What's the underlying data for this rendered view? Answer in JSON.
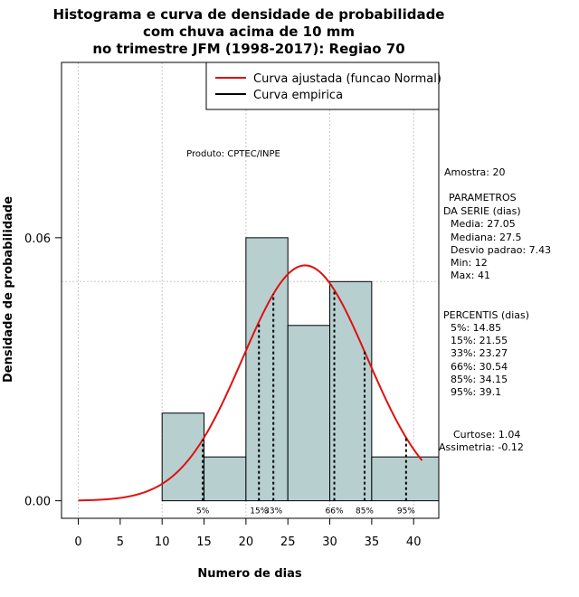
{
  "chart_data": {
    "type": "bar",
    "title": [
      "Histograma e curva de densidade de probabilidade",
      "com chuva acima de 10 mm",
      "no trimestre JFM (1998-2017): Regiao 70"
    ],
    "xlabel": "Numero de dias",
    "ylabel": "Densidade de probabilidade",
    "xlim": [
      -2,
      43
    ],
    "ylim": [
      -0.004,
      0.1
    ],
    "x_ticks": [
      0,
      5,
      10,
      15,
      20,
      25,
      30,
      35,
      40
    ],
    "x_tick_labels": [
      "0",
      "5",
      "10",
      "15",
      "20",
      "25",
      "30",
      "35",
      "40"
    ],
    "y_ticks": [
      0.0,
      0.06
    ],
    "y_tick_labels": [
      "0.00",
      "0.06"
    ],
    "grid_x": [
      0,
      10,
      20,
      30,
      40
    ],
    "grid_y": [
      0.05,
      0.1
    ],
    "histogram": {
      "bins": [
        {
          "x0": 10,
          "x1": 15,
          "density": 0.02
        },
        {
          "x0": 15,
          "x1": 20,
          "density": 0.01
        },
        {
          "x0": 20,
          "x1": 25,
          "density": 0.06
        },
        {
          "x0": 25,
          "x1": 30,
          "density": 0.04
        },
        {
          "x0": 30,
          "x1": 35,
          "density": 0.05
        },
        {
          "x0": 35,
          "x1": 43,
          "density": 0.01
        }
      ],
      "color": "#b7cfcf"
    },
    "normal_curve": {
      "mean": 27.05,
      "sd": 7.43,
      "x_from": 0,
      "x_to": 41,
      "color": "#e01010"
    },
    "legend": {
      "position": "top-right",
      "entries": [
        {
          "label": "Curva ajustada (funcao Normal)",
          "color": "#e01010"
        },
        {
          "label": "Curva empirica",
          "color": "#000000"
        }
      ]
    },
    "annotation": "Produto: CPTEC/INPE",
    "percentiles": [
      {
        "label": "5%",
        "x": 14.85
      },
      {
        "label": "15%",
        "x": 21.55
      },
      {
        "label": "33%",
        "x": 23.27
      },
      {
        "label": "66%",
        "x": 30.54
      },
      {
        "label": "85%",
        "x": 34.15
      },
      {
        "label": "95%",
        "x": 39.1
      }
    ],
    "side_panel": {
      "sample": "Amostra: 20",
      "params_title_1": "PARAMETROS",
      "params_title_2": "DA SERIE (dias)",
      "params": [
        "Media: 27.05",
        "Mediana: 27.5",
        "Desvio padrao: 7.43",
        "Min: 12",
        "Max: 41"
      ],
      "pct_title": "PERCENTIS (dias)",
      "pct_values": [
        "5%: 14.85",
        "15%: 21.55",
        "33%: 23.27",
        "66%: 30.54",
        "85%: 34.15",
        "95%: 39.1"
      ],
      "curtose": "Curtose: 1.04",
      "assimetria": "Assimetria: -0.12"
    }
  }
}
